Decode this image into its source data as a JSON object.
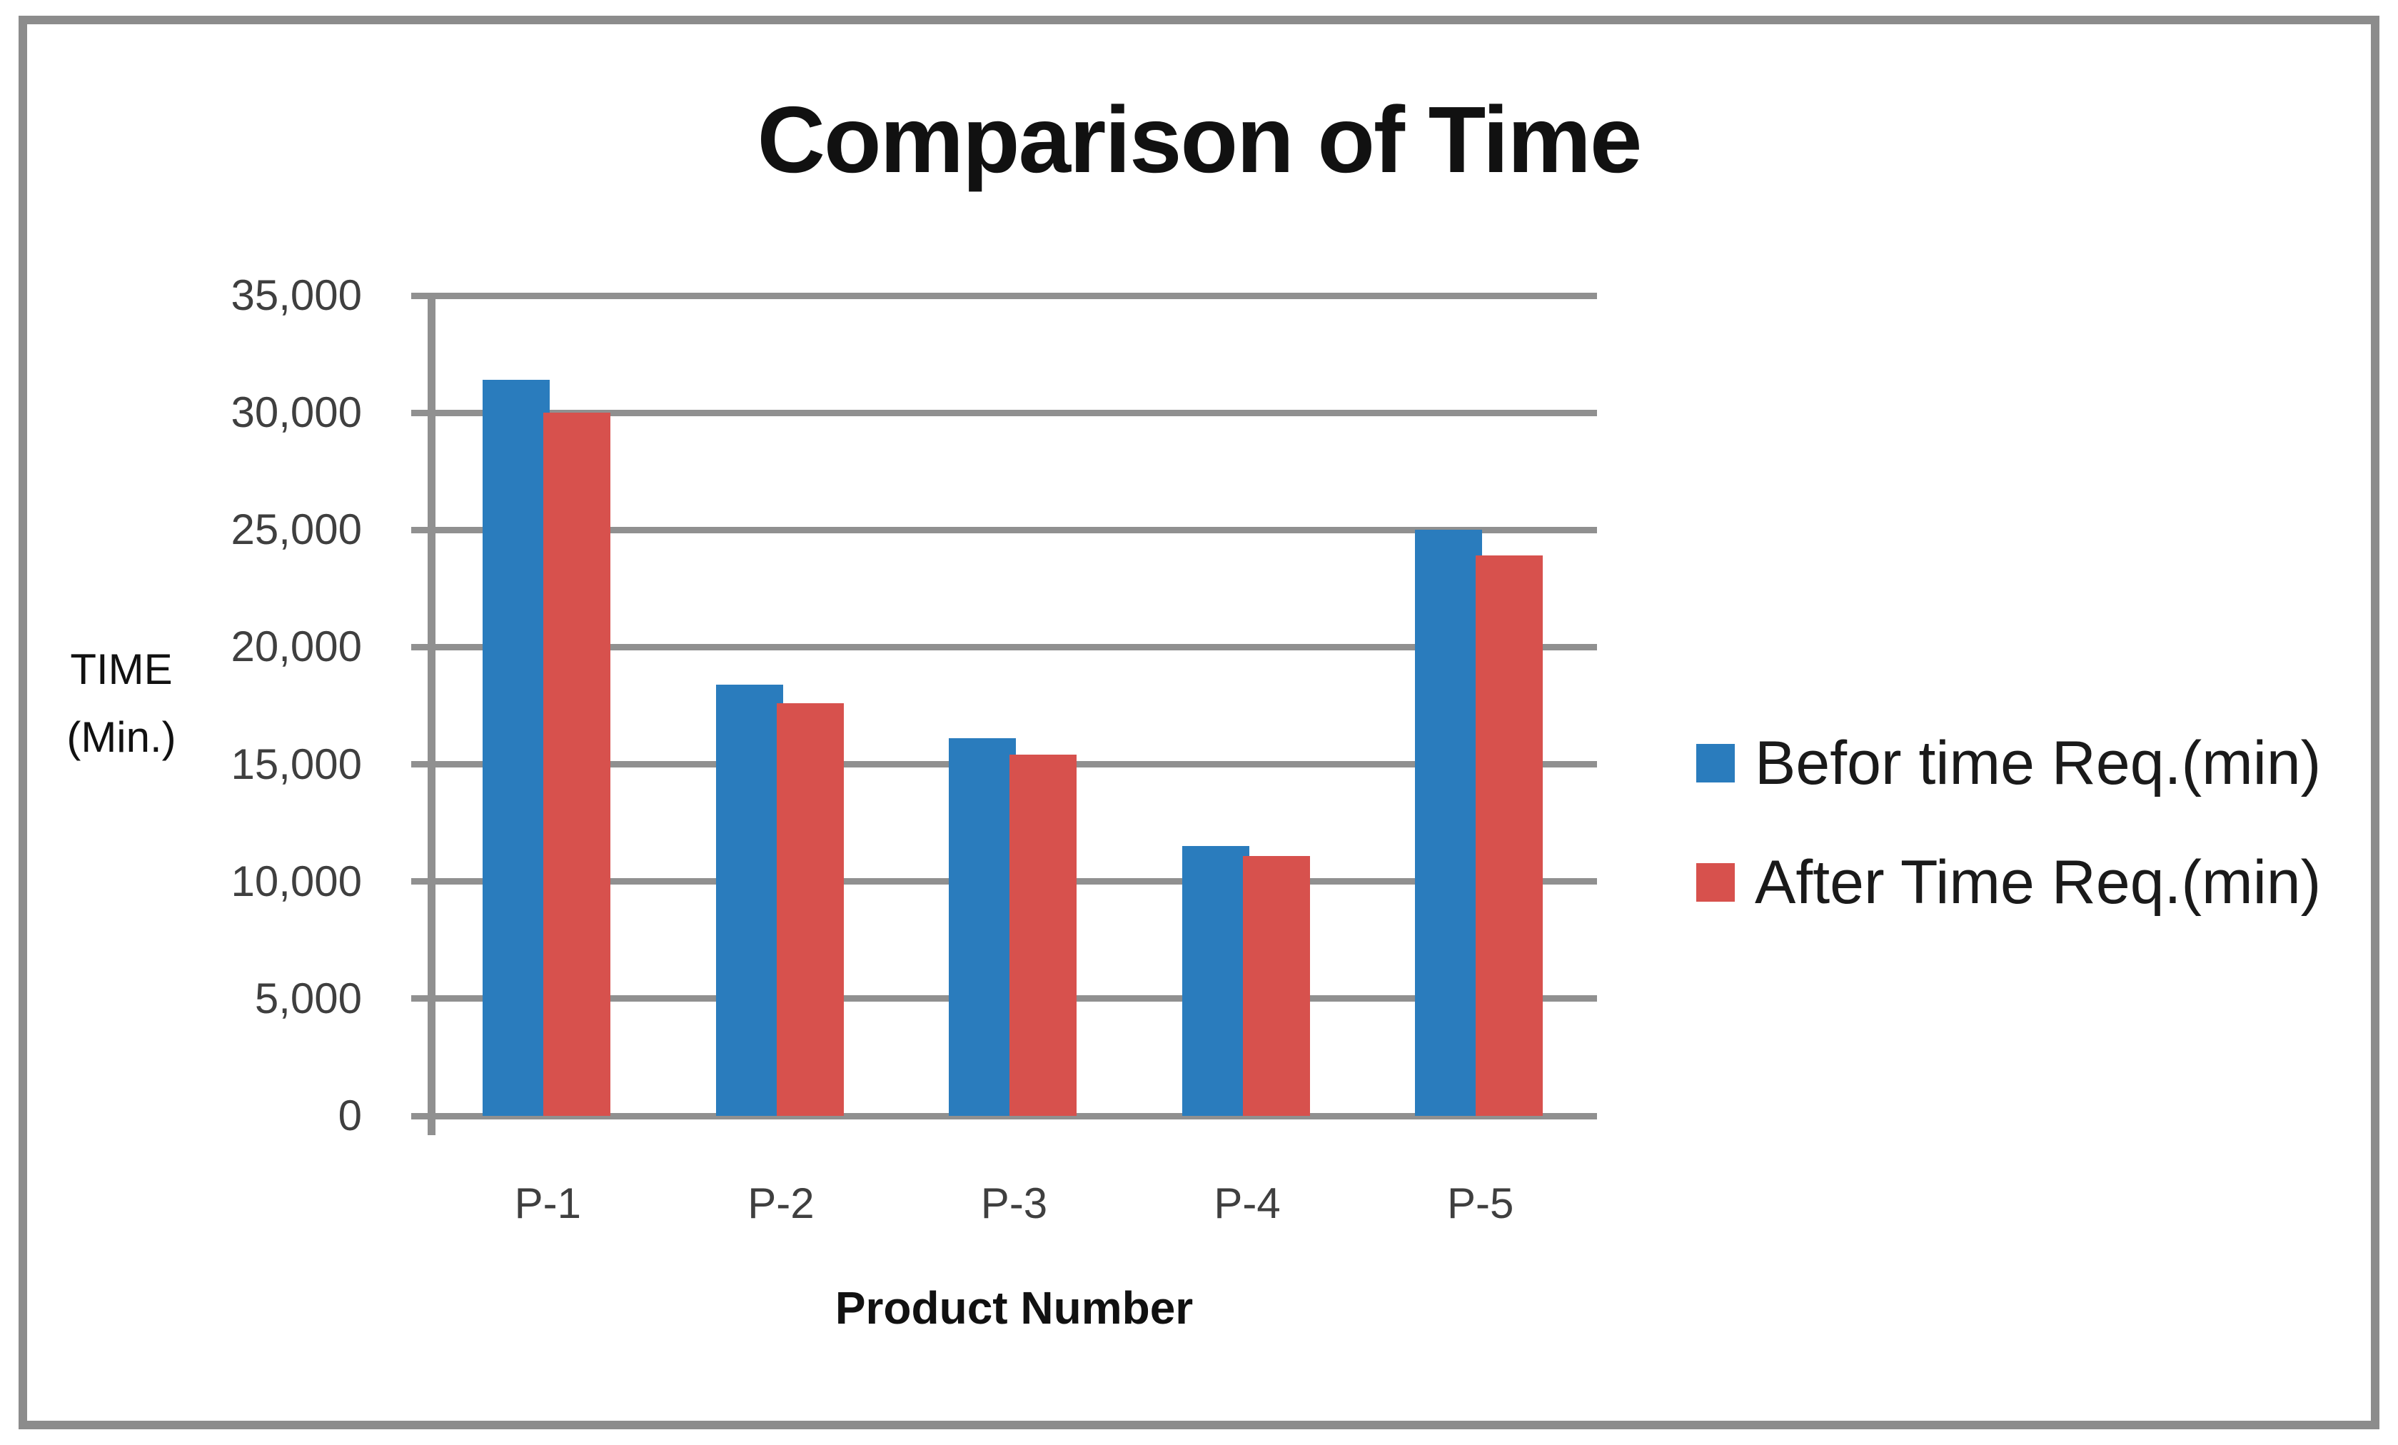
{
  "page": {
    "background": "#ffffff"
  },
  "chart_data": {
    "type": "bar",
    "title": "Comparison of Time",
    "categories": [
      "P-1",
      "P-2",
      "P-3",
      "P-4",
      "P-5"
    ],
    "series": [
      {
        "name": "Befor time Req.(min)",
        "color": "#2A7CBD",
        "values": [
          31400,
          18400,
          16100,
          11500,
          25000
        ]
      },
      {
        "name": "After Time Req.(min)",
        "color": "#D7514D",
        "values": [
          30000,
          17600,
          15400,
          11100,
          23900
        ]
      }
    ],
    "xlabel": "Product Number",
    "ylabel_lines": [
      "TIME",
      "(Min.)"
    ],
    "ylim": [
      0,
      35000
    ],
    "ytick_step": 5000,
    "ytick_labels": [
      "0",
      "5,000",
      "10,000",
      "15,000",
      "20,000",
      "25,000",
      "30,000",
      "35,000"
    ],
    "grid": "horizontal-only",
    "legend_position": "right",
    "colors": {
      "gridline": "#909090",
      "axis_line": "#909090",
      "tick_label": "#3F3F3F",
      "frame_border": "#8C8C8C",
      "text": "#111111"
    }
  }
}
